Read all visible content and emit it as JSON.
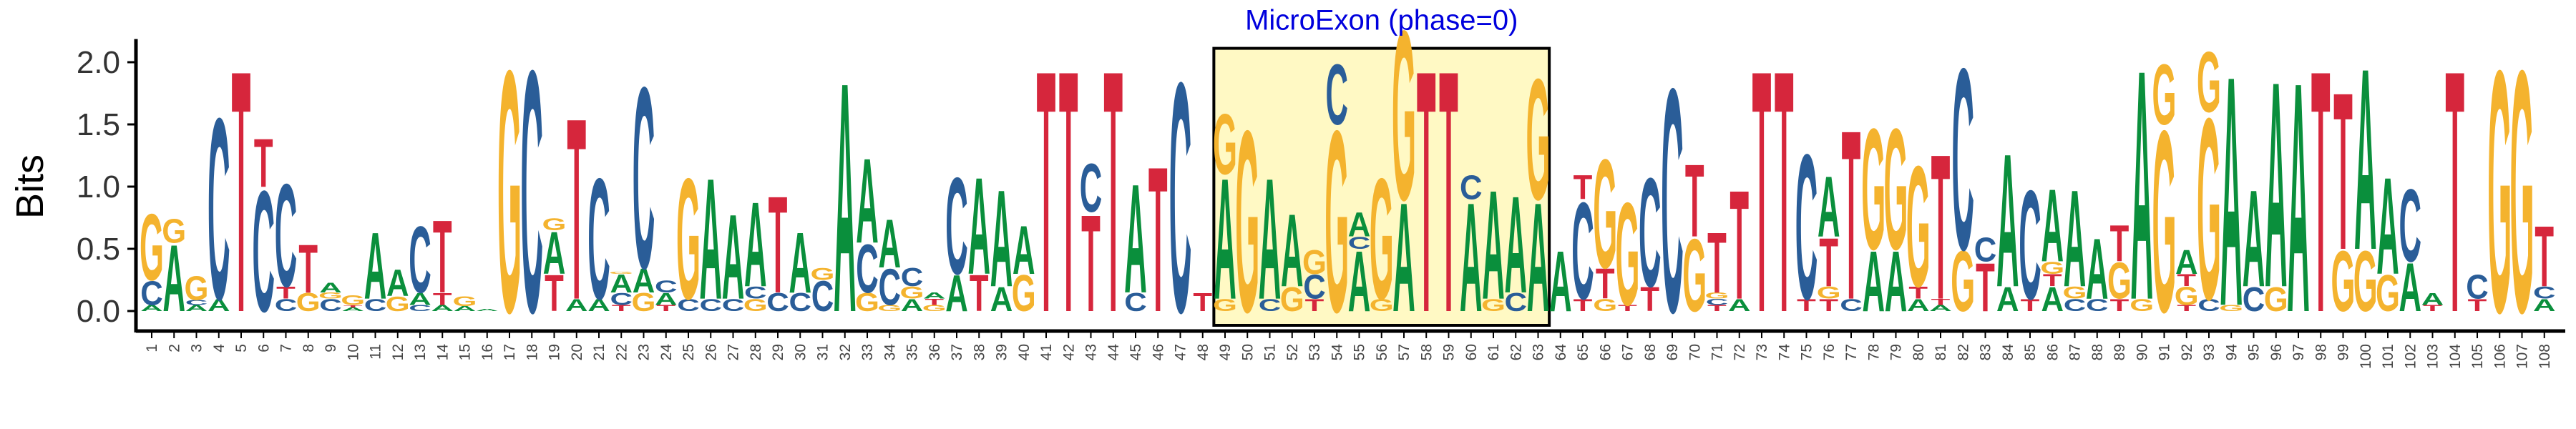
{
  "colors": {
    "A": "#0a8f3c",
    "C": "#2a5d98",
    "G": "#f4b32e",
    "T": "#d6263c",
    "highlight_fill": "#fff9c4",
    "highlight_stroke": "#000000",
    "annotation": "#0000dd"
  },
  "chart_data": {
    "type": "sequence-logo",
    "title": "",
    "xlabel": "",
    "ylabel": "Bits",
    "ylim": [
      0,
      2.1
    ],
    "yticks": [
      "0.0",
      "0.5",
      "1.0",
      "1.5",
      "2.0"
    ],
    "x": [
      "1",
      "2",
      "3",
      "4",
      "5",
      "6",
      "7",
      "8",
      "9",
      "10",
      "11",
      "12",
      "13",
      "14",
      "15",
      "16",
      "17",
      "18",
      "19",
      "20",
      "21",
      "22",
      "23",
      "24",
      "25",
      "26",
      "27",
      "28",
      "29",
      "30",
      "31",
      "32",
      "33",
      "34",
      "35",
      "36",
      "37",
      "38",
      "39",
      "40",
      "41",
      "42",
      "43",
      "44",
      "45",
      "46",
      "47",
      "48",
      "49",
      "50",
      "51",
      "52",
      "53",
      "54",
      "55",
      "56",
      "57",
      "58",
      "59",
      "60",
      "61",
      "62",
      "63",
      "64",
      "65",
      "66",
      "67",
      "68",
      "69",
      "70",
      "71",
      "72",
      "73",
      "74",
      "75",
      "76",
      "77",
      "78",
      "79",
      "80",
      "81",
      "82",
      "83",
      "84",
      "85",
      "86",
      "87",
      "88",
      "89",
      "90",
      "91",
      "92",
      "93",
      "94",
      "95",
      "96",
      "97",
      "98",
      "99",
      "100",
      "101",
      "102",
      "103",
      "104",
      "105",
      "106",
      "107",
      "108"
    ],
    "positions": [
      [
        [
          "A",
          0.05
        ],
        [
          "C",
          0.2
        ],
        [
          "G",
          0.55
        ]
      ],
      [
        [
          "A",
          0.55
        ],
        [
          "G",
          0.2
        ]
      ],
      [
        [
          "A",
          0.05
        ],
        [
          "C",
          0.04
        ],
        [
          "A",
          0.0
        ],
        [
          "G",
          0.2
        ]
      ],
      [
        [
          "A",
          0.1
        ],
        [
          "C",
          1.5
        ]
      ],
      [
        [
          "T",
          2.0
        ]
      ],
      [
        [
          "C",
          1.0
        ],
        [
          "T",
          0.4
        ]
      ],
      [
        [
          "C",
          0.1
        ],
        [
          "T",
          0.1
        ],
        [
          "C",
          0.85
        ]
      ],
      [
        [
          "G",
          0.15
        ],
        [
          "T",
          0.4
        ]
      ],
      [
        [
          "C",
          0.1
        ],
        [
          "G",
          0.05
        ],
        [
          "A",
          0.08
        ]
      ],
      [
        [
          "A",
          0.03
        ],
        [
          "T",
          0.02
        ],
        [
          "G",
          0.08
        ]
      ],
      [
        [
          "C",
          0.1
        ],
        [
          "A",
          0.55
        ]
      ],
      [
        [
          "G",
          0.12
        ],
        [
          "A",
          0.22
        ]
      ],
      [
        [
          "C",
          0.05
        ],
        [
          "A",
          0.1
        ],
        [
          "C",
          0.55
        ]
      ],
      [
        [
          "A",
          0.05
        ],
        [
          "T",
          0.1
        ],
        [
          "T",
          0.6
        ]
      ],
      [
        [
          "A",
          0.04
        ],
        [
          "G",
          0.08
        ]
      ],
      [
        [
          "A",
          0.02
        ]
      ],
      [
        [
          "G",
          2.0
        ]
      ],
      [
        [
          "C",
          2.0
        ]
      ],
      [
        [
          "T",
          0.3
        ],
        [
          "A",
          0.35
        ],
        [
          "G",
          0.1
        ]
      ],
      [
        [
          "A",
          0.1
        ],
        [
          "T",
          1.5
        ]
      ],
      [
        [
          "A",
          0.1
        ],
        [
          "C",
          1.0
        ]
      ],
      [
        [
          "T",
          0.05
        ],
        [
          "C",
          0.1
        ],
        [
          "A",
          0.15
        ],
        [
          "G",
          0.02
        ]
      ],
      [
        [
          "G",
          0.15
        ],
        [
          "A",
          0.2
        ],
        [
          "C",
          1.5
        ]
      ],
      [
        [
          "T",
          0.05
        ],
        [
          "A",
          0.1
        ],
        [
          "C",
          0.1
        ]
      ],
      [
        [
          "C",
          0.1
        ],
        [
          "G",
          1.0
        ]
      ],
      [
        [
          "C",
          0.1
        ],
        [
          "A",
          1.0
        ]
      ],
      [
        [
          "C",
          0.1
        ],
        [
          "A",
          0.7
        ]
      ],
      [
        [
          "G",
          0.1
        ],
        [
          "C",
          0.1
        ],
        [
          "A",
          0.7
        ]
      ],
      [
        [
          "C",
          0.15
        ],
        [
          "T",
          0.8
        ]
      ],
      [
        [
          "C",
          0.15
        ],
        [
          "A",
          0.5
        ]
      ],
      [
        [
          "C",
          0.25
        ],
        [
          "G",
          0.1
        ]
      ],
      [
        [
          "A",
          1.9
        ]
      ],
      [
        [
          "G",
          0.15
        ],
        [
          "C",
          0.4
        ],
        [
          "A",
          0.7
        ]
      ],
      [
        [
          "G",
          0.05
        ],
        [
          "C",
          0.3
        ],
        [
          "A",
          0.4
        ]
      ],
      [
        [
          "A",
          0.1
        ],
        [
          "G",
          0.1
        ],
        [
          "C",
          0.15
        ]
      ],
      [
        [
          "G",
          0.05
        ],
        [
          "T",
          0.05
        ],
        [
          "A",
          0.05
        ]
      ],
      [
        [
          "A",
          0.3
        ],
        [
          "C",
          0.8
        ]
      ],
      [
        [
          "T",
          0.3
        ],
        [
          "A",
          0.8
        ]
      ],
      [
        [
          "A",
          0.2
        ],
        [
          "A",
          0.8
        ]
      ],
      [
        [
          "G",
          0.3
        ],
        [
          "A",
          0.4
        ]
      ],
      [
        [
          "T",
          2.0
        ]
      ],
      [
        [
          "T",
          2.0
        ]
      ],
      [
        [
          "T",
          0.8
        ],
        [
          "C",
          0.4
        ]
      ],
      [
        [
          "T",
          2.0
        ]
      ],
      [
        [
          "C",
          0.15
        ],
        [
          "A",
          0.9
        ]
      ],
      [
        [
          "T",
          1.2
        ]
      ],
      [
        [
          "C",
          1.9
        ]
      ],
      [
        [
          "T",
          0.15
        ],
        [
          "T",
          0.0
        ]
      ],
      [
        [
          "G",
          0.1
        ],
        [
          "A",
          1.0
        ],
        [
          "G",
          0.5
        ]
      ],
      [
        [
          "G",
          1.5
        ]
      ],
      [
        [
          "C",
          0.1
        ],
        [
          "A",
          1.0
        ]
      ],
      [
        [
          "G",
          0.2
        ],
        [
          "A",
          0.6
        ]
      ],
      [
        [
          "T",
          0.1
        ],
        [
          "C",
          0.2
        ],
        [
          "G",
          0.2
        ]
      ],
      [
        [
          "G",
          1.5
        ],
        [
          "C",
          0.5
        ]
      ],
      [
        [
          "A",
          0.5
        ],
        [
          "C",
          0.1
        ],
        [
          "A",
          0.2
        ]
      ],
      [
        [
          "G",
          0.1
        ],
        [
          "G",
          1.0
        ]
      ],
      [
        [
          "A",
          0.9
        ],
        [
          "G",
          1.4
        ]
      ],
      [
        [
          "T",
          2.0
        ]
      ],
      [
        [
          "T",
          2.0
        ]
      ],
      [
        [
          "A",
          0.9
        ],
        [
          "C",
          0.2
        ]
      ],
      [
        [
          "G",
          0.1
        ],
        [
          "A",
          0.9
        ]
      ],
      [
        [
          "C",
          0.15
        ],
        [
          "A",
          0.8
        ]
      ],
      [
        [
          "A",
          0.9
        ],
        [
          "G",
          1.0
        ]
      ],
      [
        [
          "A",
          0.5
        ]
      ],
      [
        [
          "T",
          0.1
        ],
        [
          "C",
          0.8
        ],
        [
          "T",
          0.2
        ]
      ],
      [
        [
          "G",
          0.1
        ],
        [
          "T",
          0.25
        ],
        [
          "G",
          0.9
        ]
      ],
      [
        [
          "T",
          0.05
        ],
        [
          "G",
          0.85
        ]
      ],
      [
        [
          "T",
          0.2
        ],
        [
          "C",
          0.9
        ]
      ],
      [
        [
          "C",
          1.85
        ]
      ],
      [
        [
          "G",
          0.6
        ],
        [
          "T",
          0.6
        ]
      ],
      [
        [
          "T",
          0.05
        ],
        [
          "C",
          0.05
        ],
        [
          "G",
          0.05
        ],
        [
          "T",
          0.5
        ]
      ],
      [
        [
          "A",
          0.1
        ],
        [
          "T",
          0.9
        ]
      ],
      [
        [
          "T",
          2.0
        ]
      ],
      [
        [
          "T",
          2.0
        ]
      ],
      [
        [
          "T",
          0.1
        ],
        [
          "C",
          1.2
        ]
      ],
      [
        [
          "T",
          0.1
        ],
        [
          "G",
          0.1
        ],
        [
          "T",
          0.4
        ],
        [
          "A",
          0.5
        ]
      ],
      [
        [
          "C",
          0.1
        ],
        [
          "T",
          1.4
        ]
      ],
      [
        [
          "A",
          0.5
        ],
        [
          "G",
          1.0
        ]
      ],
      [
        [
          "A",
          0.5
        ],
        [
          "G",
          1.0
        ]
      ],
      [
        [
          "A",
          0.1
        ],
        [
          "T",
          0.1
        ],
        [
          "G",
          1.0
        ]
      ],
      [
        [
          "A",
          0.05
        ],
        [
          "T",
          0.05
        ],
        [
          "T",
          1.2
        ]
      ],
      [
        [
          "G",
          0.5
        ],
        [
          "C",
          1.5
        ]
      ],
      [
        [
          "T",
          0.4
        ],
        [
          "C",
          0.2
        ]
      ],
      [
        [
          "A",
          0.2
        ],
        [
          "A",
          1.1
        ]
      ],
      [
        [
          "T",
          0.1
        ],
        [
          "C",
          0.9
        ]
      ],
      [
        [
          "A",
          0.2
        ],
        [
          "T",
          0.1
        ],
        [
          "G",
          0.1
        ],
        [
          "A",
          0.6
        ]
      ],
      [
        [
          "C",
          0.1
        ],
        [
          "G",
          0.1
        ],
        [
          "A",
          0.8
        ]
      ],
      [
        [
          "C",
          0.1
        ],
        [
          "A",
          0.5
        ]
      ],
      [
        [
          "T",
          0.1
        ],
        [
          "G",
          0.3
        ],
        [
          "T",
          0.3
        ]
      ],
      [
        [
          "G",
          0.1
        ],
        [
          "A",
          1.9
        ]
      ],
      [
        [
          "G",
          1.5
        ],
        [
          "G",
          0.5
        ]
      ],
      [
        [
          "T",
          0.05
        ],
        [
          "G",
          0.15
        ],
        [
          "T",
          0.1
        ],
        [
          "A",
          0.2
        ]
      ],
      [
        [
          "C",
          0.1
        ],
        [
          "G",
          1.5
        ],
        [
          "G",
          0.5
        ]
      ],
      [
        [
          "G",
          0.05
        ],
        [
          "A",
          1.9
        ]
      ],
      [
        [
          "C",
          0.2
        ],
        [
          "A",
          0.8
        ]
      ],
      [
        [
          "G",
          0.2
        ],
        [
          "A",
          1.7
        ]
      ],
      [
        [
          "A",
          1.9
        ]
      ],
      [
        [
          "T",
          2.0
        ]
      ],
      [
        [
          "G",
          0.5
        ],
        [
          "T",
          1.3
        ]
      ],
      [
        [
          "G",
          0.5
        ],
        [
          "A",
          1.5
        ]
      ],
      [
        [
          "G",
          0.3
        ],
        [
          "A",
          0.8
        ]
      ],
      [
        [
          "A",
          0.4
        ],
        [
          "C",
          0.6
        ]
      ],
      [
        [
          "T",
          0.05
        ],
        [
          "A",
          0.1
        ]
      ],
      [
        [
          "T",
          2.0
        ]
      ],
      [
        [
          "T",
          0.1
        ],
        [
          "C",
          0.2
        ]
      ],
      [
        [
          "G",
          2.0
        ]
      ],
      [
        [
          "G",
          2.0
        ]
      ],
      [
        [
          "A",
          0.1
        ],
        [
          "C",
          0.1
        ],
        [
          "T",
          0.5
        ]
      ]
    ],
    "annotations": [
      {
        "label": "MicroExon (phase=0)",
        "start": 49,
        "end": 63
      }
    ],
    "grid": false,
    "legend": "none"
  }
}
